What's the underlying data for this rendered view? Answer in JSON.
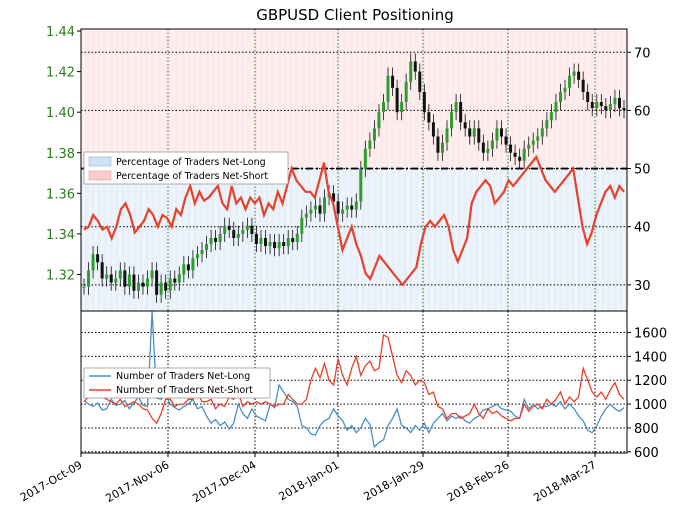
{
  "chart_data": [
    {
      "type": "candlestick+line",
      "title": "GBPUSD Client Positioning",
      "left_axis": {
        "ticks": [
          1.32,
          1.34,
          1.36,
          1.38,
          1.4,
          1.42,
          1.44
        ],
        "range": [
          1.302,
          1.441
        ],
        "color": "#2e7d1e"
      },
      "right_axis": {
        "ticks": [
          30,
          40,
          50,
          60,
          70
        ],
        "range": [
          25.5,
          74
        ]
      },
      "x_labels": [
        "2017-Oct-09",
        "2017-Nov-06",
        "2017-Dec-04",
        "2018-Jan-01",
        "2018-Jan-29",
        "2018-Feb-26",
        "2018-Mar-27"
      ],
      "price_series": [
        1.314,
        1.322,
        1.33,
        1.326,
        1.318,
        1.32,
        1.316,
        1.318,
        1.322,
        1.314,
        1.32,
        1.312,
        1.316,
        1.314,
        1.318,
        1.322,
        1.31,
        1.316,
        1.312,
        1.318,
        1.316,
        1.32,
        1.325,
        1.322,
        1.328,
        1.33,
        1.332,
        1.335,
        1.338,
        1.336,
        1.34,
        1.344,
        1.342,
        1.338,
        1.34,
        1.342,
        1.344,
        1.34,
        1.335,
        1.338,
        1.334,
        1.336,
        1.333,
        1.336,
        1.334,
        1.338,
        1.336,
        1.34,
        1.348,
        1.35,
        1.352,
        1.354,
        1.35,
        1.358,
        1.36,
        1.356,
        1.35,
        1.352,
        1.354,
        1.352,
        1.356,
        1.372,
        1.382,
        1.386,
        1.392,
        1.4,
        1.405,
        1.418,
        1.412,
        1.4,
        1.405,
        1.415,
        1.425,
        1.42,
        1.41,
        1.4,
        1.395,
        1.388,
        1.38,
        1.385,
        1.392,
        1.4,
        1.405,
        1.395,
        1.392,
        1.388,
        1.392,
        1.385,
        1.38,
        1.382,
        1.386,
        1.392,
        1.388,
        1.384,
        1.38,
        1.378,
        1.376,
        1.382,
        1.384,
        1.386,
        1.388,
        1.392,
        1.396,
        1.4,
        1.405,
        1.41,
        1.412,
        1.418,
        1.42,
        1.416,
        1.41,
        1.405,
        1.402,
        1.405,
        1.403,
        1.401,
        1.404,
        1.407,
        1.402,
        1.401
      ],
      "series": [
        {
          "name": "Percentage of Traders Net-Long",
          "color": "#4a90c8",
          "fill": "#cfe2f3"
        },
        {
          "name": "Percentage of Traders Net-Short",
          "color": "#e8402a",
          "fill": "#f9cccc"
        }
      ],
      "net_short_pct": [
        39.5,
        40,
        42,
        41,
        39.5,
        40,
        38,
        40,
        43,
        44,
        42,
        39,
        40,
        41,
        43,
        42,
        40,
        42,
        41.5,
        40,
        43,
        42,
        45,
        47,
        44,
        46,
        44.5,
        45,
        46,
        47,
        44,
        43,
        47,
        44,
        45,
        43,
        45,
        44,
        45,
        42,
        44,
        43,
        46,
        44,
        47,
        50,
        48,
        47,
        46,
        46,
        45,
        48,
        51,
        46,
        44,
        40,
        36,
        38,
        40,
        37,
        35,
        32,
        31,
        33,
        35,
        34,
        33,
        32,
        31,
        30,
        31,
        32,
        33,
        37,
        40,
        41,
        40,
        41,
        42,
        40,
        36,
        34,
        36,
        38,
        44,
        46,
        47,
        48,
        47,
        44,
        45,
        46,
        48,
        47,
        48,
        49,
        50,
        51,
        52,
        50,
        48,
        47,
        46,
        47,
        48,
        49,
        50,
        45,
        40,
        37,
        39,
        42,
        44,
        46,
        47,
        45,
        47,
        46
      ]
    },
    {
      "type": "line",
      "y_axis": {
        "ticks": [
          600,
          800,
          1000,
          1200,
          1400,
          1600
        ],
        "range": [
          590,
          1780
        ]
      },
      "series": [
        {
          "name": "Number of Traders Net-Long",
          "color": "#4a90c8",
          "values": [
            1030,
            1000,
            980,
            1010,
            950,
            960,
            1040,
            990,
            1000,
            1030,
            960,
            1010,
            1060,
            990,
            980,
            1780,
            1050,
            1040,
            1080,
            1000,
            970,
            950,
            980,
            1000,
            1040,
            960,
            980,
            900,
            840,
            870,
            820,
            850,
            790,
            840,
            1000,
            920,
            880,
            960,
            900,
            880,
            860,
            1000,
            970,
            1160,
            1100,
            1040,
            1020,
            980,
            820,
            800,
            750,
            740,
            820,
            860,
            880,
            960,
            900,
            860,
            780,
            820,
            760,
            800,
            880,
            830,
            640,
            680,
            700,
            820,
            880,
            960,
            820,
            800,
            760,
            820,
            780,
            840,
            760,
            840,
            880,
            920,
            860,
            900,
            880,
            900,
            860,
            840,
            880,
            900,
            950,
            960,
            980,
            1000,
            960,
            950,
            940,
            900,
            880,
            1040,
            960,
            1000,
            960,
            980,
            980,
            1000,
            980,
            1020,
            960,
            1000,
            960,
            900,
            860,
            780,
            760,
            820,
            900,
            960,
            1000,
            960,
            940,
            970
          ]
        },
        {
          "name": "Number of Traders Net-Short",
          "color": "#e8402a",
          "values": [
            1020,
            1060,
            1080,
            1100,
            1060,
            1040,
            1020,
            1000,
            1040,
            980,
            1000,
            1020,
            1000,
            960,
            950,
            880,
            840,
            920,
            1040,
            1040,
            980,
            1000,
            1000,
            1040,
            1040,
            1100,
            1020,
            1020,
            1040,
            960,
            1000,
            980,
            1060,
            1040,
            1100,
            980,
            1020,
            1000,
            1020,
            1000,
            1020,
            1000,
            980,
            1000,
            1000,
            1080,
            1040,
            1000,
            1000,
            1040,
            1200,
            1300,
            1220,
            1340,
            1200,
            1160,
            1380,
            1240,
            1160,
            1300,
            1400,
            1240,
            1320,
            1360,
            1280,
            1300,
            1580,
            1560,
            1400,
            1240,
            1180,
            1280,
            1240,
            1160,
            1200,
            1180,
            1080,
            1100,
            980,
            960,
            880,
            920,
            920,
            880,
            900,
            920,
            1000,
            920,
            880,
            960,
            920,
            940,
            900,
            880,
            860,
            880,
            880,
            1000,
            940,
            980,
            1000,
            960,
            1040,
            1000,
            1040,
            1100,
            1000,
            1060,
            1020,
            1060,
            1300,
            1200,
            1100,
            1060,
            1100,
            1040,
            1120,
            1180,
            1080,
            1040
          ]
        }
      ]
    }
  ]
}
